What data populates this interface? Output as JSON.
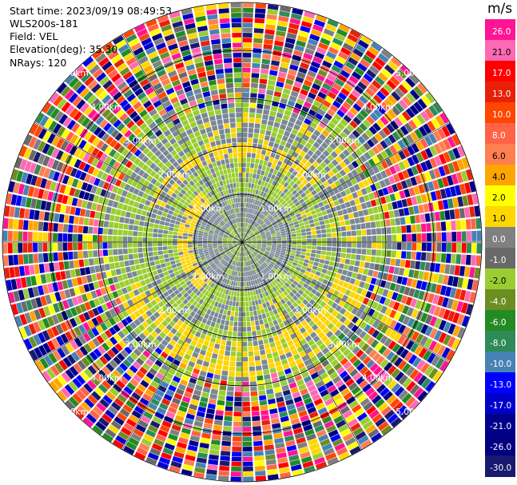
{
  "info": {
    "start_time": "Start time: 2023/09/19 08:49:53",
    "site": "WLS200s-181",
    "field": "Field: VEL",
    "elevation": "Elevation(deg): 35.30",
    "nrays": "NRays: 120"
  },
  "chart_data": {
    "type": "ppi",
    "field": "VEL",
    "nrays": 120,
    "elevation_deg": 35.3,
    "range_ring_labels": [
      "1.00km",
      "2.00km",
      "3.00km",
      "4.00km",
      "5.00km"
    ],
    "colorbar": {
      "unit": "m/s",
      "ticks": [
        "26.0",
        "21.0",
        "17.0",
        "13.0",
        "10.0",
        "8.0",
        "6.0",
        "4.0",
        "2.0",
        "1.0",
        "0.0",
        "-1.0",
        "-2.0",
        "-4.0",
        "-6.0",
        "-8.0",
        "-10.0",
        "-13.0",
        "-17.0",
        "-21.0",
        "-26.0",
        "-30.0"
      ],
      "colors": [
        "#ff1493",
        "#ff69b4",
        "#ff0000",
        "#e8200a",
        "#ff4500",
        "#ff6347",
        "#ff7f50",
        "#ffa500",
        "#ffff00",
        "#ffd700",
        "#808080",
        "#696969",
        "#9acd32",
        "#6b8e23",
        "#228b22",
        "#2e8b57",
        "#4682b4",
        "#0000ff",
        "#0000cd",
        "#00008b",
        "#000080",
        "#191970"
      ]
    }
  }
}
